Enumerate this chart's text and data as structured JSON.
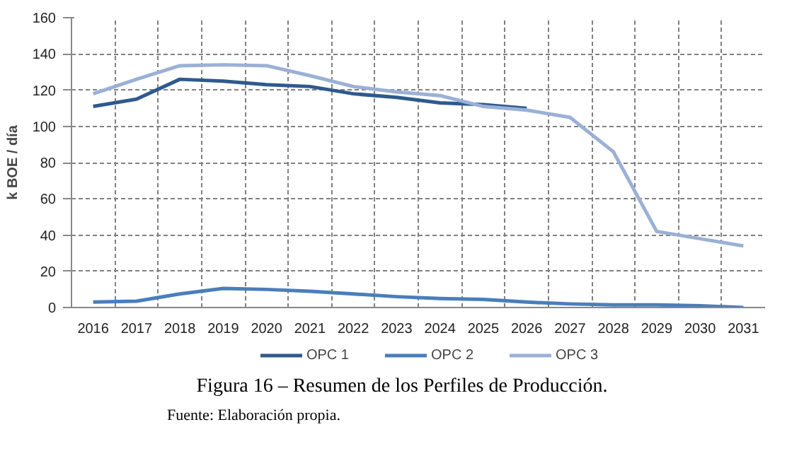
{
  "chart_data": {
    "type": "line",
    "title": "Figura 16 – Resumen de los Perfiles de Producción.",
    "ylabel": "k BOE / día",
    "annotations": [
      "Fuente: Elaboración propia."
    ],
    "categories": [
      "2016",
      "2017",
      "2018",
      "2019",
      "2020",
      "2021",
      "2022",
      "2023",
      "2024",
      "2025",
      "2026",
      "2027",
      "2028",
      "2029",
      "2030",
      "2031"
    ],
    "series": [
      {
        "name": "OPC 1",
        "color": "#2e5a8e",
        "values": [
          111,
          115,
          126,
          125,
          123,
          122,
          118,
          116,
          113,
          112,
          110,
          null,
          null,
          null,
          null,
          null
        ]
      },
      {
        "name": "OPC 2",
        "color": "#4a7ebb",
        "values": [
          3,
          3.5,
          7.5,
          10.5,
          10,
          9,
          7.5,
          6,
          5,
          4.5,
          3,
          2,
          1.5,
          1.5,
          1,
          0
        ]
      },
      {
        "name": "OPC 3",
        "color": "#9bb0d6",
        "values": [
          118,
          126,
          133.5,
          134,
          133.5,
          128,
          122,
          119,
          117,
          111,
          109,
          105,
          86,
          42,
          38,
          34
        ]
      }
    ],
    "ylim": [
      0,
      160
    ],
    "yticks": [
      0,
      20,
      40,
      60,
      80,
      100,
      120,
      140,
      160
    ],
    "grid": true,
    "legend": "bottom",
    "marker": "none",
    "line_style": "solid"
  }
}
